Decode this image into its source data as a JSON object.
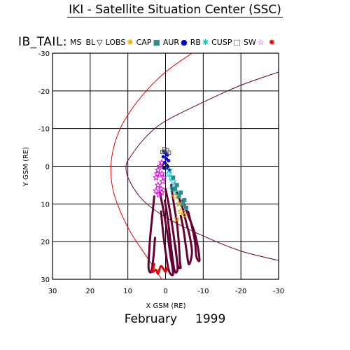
{
  "title": "IKI - Satellite Situation Center (SSC)",
  "footer": {
    "month": "February",
    "year": "1999"
  },
  "legend_label": "IB_TAIL:",
  "legend": [
    {
      "name": "MS",
      "symbol": "",
      "color": "#000000"
    },
    {
      "name": "BL",
      "symbol": "▽",
      "color": "#000000"
    },
    {
      "name": "LOBS",
      "symbol": "✺",
      "color": "#e0b000"
    },
    {
      "name": "CAP",
      "symbol": "■",
      "color": "#2a8f8f"
    },
    {
      "name": "AUR",
      "symbol": "●",
      "color": "#0000dd"
    },
    {
      "name": "RB",
      "symbol": "✱",
      "color": "#00cccc"
    },
    {
      "name": "CUSP",
      "symbol": "□",
      "color": "#555555"
    },
    {
      "name": "SW",
      "symbol": "☆",
      "color": "#e000e0"
    },
    {
      "name": "",
      "symbol": "✸",
      "color": "#ee0000"
    }
  ],
  "chart_data": {
    "type": "scatter",
    "xlabel": "X GSM (RE)",
    "ylabel": "Y GSM (RE)",
    "xlim": [
      30,
      -30
    ],
    "ylim": [
      -30,
      30
    ],
    "x_reversed": true,
    "y_down_positive": true,
    "xticks": [
      30,
      20,
      10,
      0,
      -10,
      -20,
      -30
    ],
    "xtick_labels": [
      "30",
      "20",
      "10",
      "0",
      "-10",
      "-20",
      "-30"
    ],
    "yticks": [
      -30,
      -20,
      -10,
      0,
      10,
      20,
      30
    ],
    "ytick_labels": [
      "-30",
      "-20",
      "-10",
      "0",
      "10",
      "20",
      "30"
    ],
    "grid": true,
    "earth": {
      "x": 0,
      "y": 0
    },
    "boundaries": [
      {
        "name": "bow shock",
        "color": "#ee0000",
        "points": [
          [
            -7,
            -30
          ],
          [
            0,
            -25
          ],
          [
            6,
            -19
          ],
          [
            11,
            -12
          ],
          [
            13.5,
            -6
          ],
          [
            14.5,
            0
          ],
          [
            14,
            6
          ],
          [
            12,
            12
          ],
          [
            9,
            18
          ],
          [
            5,
            24
          ],
          [
            1,
            30
          ]
        ]
      },
      {
        "name": "magnetopause",
        "color": "#660033",
        "points": [
          [
            -30,
            -25
          ],
          [
            -20,
            -21.5
          ],
          [
            -10,
            -17
          ],
          [
            0,
            -12
          ],
          [
            5,
            -8
          ],
          [
            9,
            -3
          ],
          [
            10.5,
            0
          ],
          [
            9.5,
            4
          ],
          [
            6,
            9
          ],
          [
            0,
            13.5
          ],
          [
            -10,
            18.5
          ],
          [
            -20,
            22.5
          ],
          [
            -30,
            25
          ]
        ]
      }
    ],
    "series": [
      {
        "name": "SW",
        "color": "#e000e0",
        "marker": "star",
        "points": [
          [
            1,
            -1
          ],
          [
            1.5,
            0
          ],
          [
            2,
            1
          ],
          [
            1,
            2
          ],
          [
            2.5,
            3
          ],
          [
            0.8,
            4
          ],
          [
            2,
            5
          ],
          [
            1.2,
            6
          ],
          [
            2.5,
            6.5
          ],
          [
            1,
            7
          ],
          [
            1.8,
            7.5
          ],
          [
            0.5,
            3
          ],
          [
            2.2,
            2
          ]
        ]
      },
      {
        "name": "AUR",
        "color": "#0000dd",
        "marker": "dot",
        "points": [
          [
            0.5,
            -4
          ],
          [
            0,
            -3.5
          ],
          [
            -0.5,
            -3
          ],
          [
            -0.2,
            -2
          ],
          [
            0.6,
            -2.5
          ],
          [
            -0.8,
            -1.5
          ],
          [
            0.2,
            -1
          ],
          [
            -0.5,
            0
          ],
          [
            0.4,
            0.5
          ],
          [
            -1,
            1
          ]
        ]
      },
      {
        "name": "RB",
        "color": "#00cccc",
        "marker": "star",
        "points": [
          [
            -1,
            1
          ],
          [
            -1.5,
            3
          ],
          [
            -2.5,
            5
          ],
          [
            -3,
            7
          ],
          [
            -2,
            4
          ],
          [
            -0.8,
            2
          ],
          [
            -1.8,
            6
          ]
        ]
      },
      {
        "name": "CAP",
        "color": "#2a8f8f",
        "marker": "square",
        "points": [
          [
            -2,
            3
          ],
          [
            -3,
            5
          ],
          [
            -4,
            7
          ],
          [
            -5,
            9
          ],
          [
            -3.5,
            8
          ],
          [
            -4.5,
            10
          ],
          [
            -2.5,
            6
          ],
          [
            -5.5,
            11
          ]
        ]
      },
      {
        "name": "LOBS",
        "color": "#e0b000",
        "marker": "star",
        "points": [
          [
            -2.5,
            8
          ],
          [
            -3.5,
            10
          ],
          [
            -4,
            12
          ],
          [
            -5,
            13
          ],
          [
            -3,
            14
          ]
        ]
      },
      {
        "name": "CUSP",
        "color": "#555555",
        "marker": "square",
        "points": [
          [
            0.3,
            -4.5
          ],
          [
            -0.4,
            -4.2
          ],
          [
            0.8,
            -3.8
          ],
          [
            -0.9,
            -3.6
          ]
        ]
      }
    ],
    "tracks": [
      {
        "color": "#660033",
        "points": [
          [
            -1.5,
            5
          ],
          [
            -2.2,
            10
          ],
          [
            -3,
            15
          ],
          [
            -3.5,
            20
          ],
          [
            -3.8,
            25
          ],
          [
            -4,
            27
          ],
          [
            -3.2,
            26
          ],
          [
            -2.6,
            21
          ]
        ]
      },
      {
        "color": "#660033",
        "points": [
          [
            0,
            6
          ],
          [
            -1,
            11
          ],
          [
            -1.8,
            16
          ],
          [
            -2.5,
            21
          ],
          [
            -3.2,
            27
          ],
          [
            -2.5,
            28
          ],
          [
            -1.8,
            24
          ],
          [
            -1.2,
            19
          ],
          [
            -0.6,
            14
          ],
          [
            0.2,
            9
          ]
        ]
      },
      {
        "color": "#660033",
        "points": [
          [
            1.5,
            7
          ],
          [
            0.5,
            12
          ],
          [
            -0.5,
            18
          ],
          [
            -1.2,
            23
          ],
          [
            -2,
            28.5
          ],
          [
            -1,
            28
          ],
          [
            -0.2,
            24
          ],
          [
            0.6,
            18
          ],
          [
            1.2,
            12
          ]
        ]
      },
      {
        "color": "#660033",
        "points": [
          [
            -3,
            7
          ],
          [
            -4.5,
            11
          ],
          [
            -5.5,
            15
          ],
          [
            -6.5,
            19
          ],
          [
            -7,
            23
          ],
          [
            -6.2,
            26
          ],
          [
            -5.5,
            22
          ],
          [
            -4.8,
            17
          ],
          [
            -4,
            13
          ]
        ]
      },
      {
        "color": "#660033",
        "points": [
          [
            -4.5,
            9
          ],
          [
            -6,
            13
          ],
          [
            -7.5,
            17
          ],
          [
            -8.5,
            21
          ],
          [
            -9,
            25
          ],
          [
            -8.2,
            24
          ],
          [
            -7.8,
            20
          ],
          [
            -7,
            16
          ],
          [
            -6,
            12
          ]
        ]
      },
      {
        "color": "#660033",
        "points": [
          [
            3,
            8
          ],
          [
            3.5,
            13
          ],
          [
            4,
            18
          ],
          [
            4.3,
            22
          ],
          [
            4.5,
            27
          ],
          [
            3.8,
            28
          ],
          [
            3.2,
            24
          ],
          [
            2.8,
            19
          ]
        ]
      },
      {
        "color": "#ee0000",
        "points": [
          [
            3,
            26
          ],
          [
            3.5,
            28
          ],
          [
            2.5,
            27.5
          ],
          [
            2,
            28.5
          ],
          [
            1.2,
            26.5
          ],
          [
            0,
            28
          ],
          [
            -0.5,
            26.5
          ]
        ]
      }
    ]
  }
}
